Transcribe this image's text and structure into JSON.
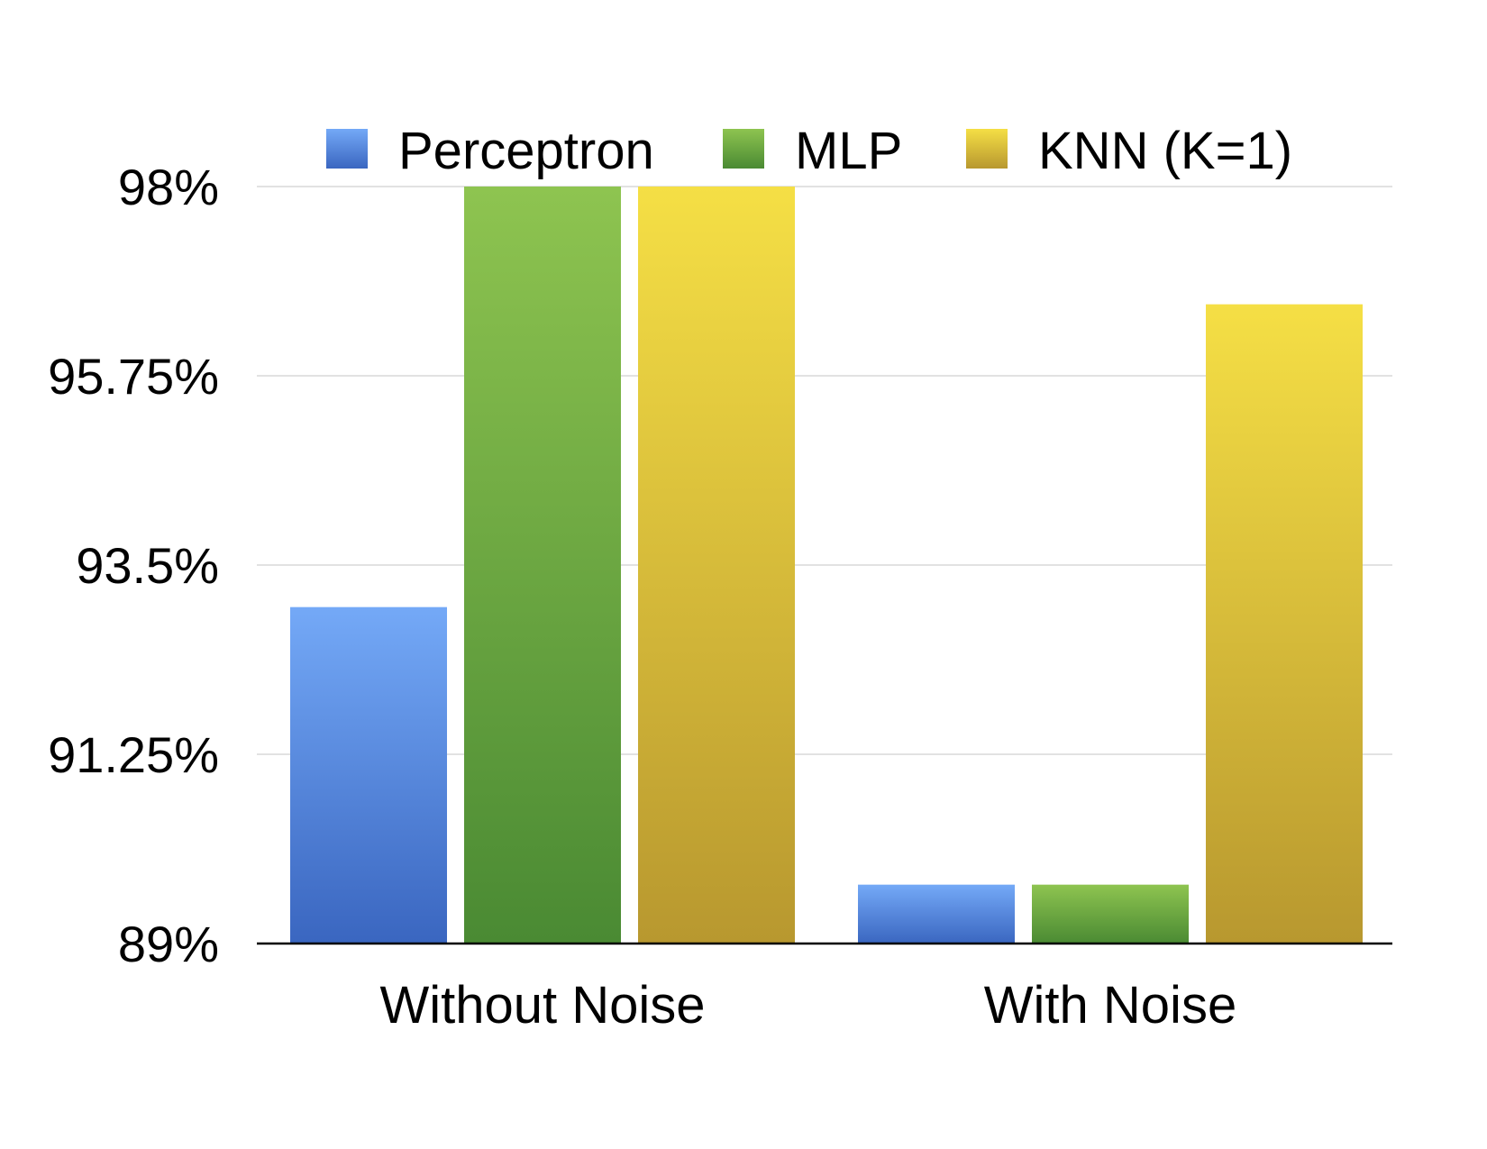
{
  "chart_data": {
    "type": "bar",
    "categories": [
      "Without Noise",
      "With Noise"
    ],
    "series": [
      {
        "name": "Perceptron",
        "values": [
          93.0,
          89.7
        ],
        "color_top": "#74a9f7",
        "color_bottom": "#3a66c0"
      },
      {
        "name": "MLP",
        "values": [
          98.0,
          89.7
        ],
        "color_top": "#8ec450",
        "color_bottom": "#4a8a33"
      },
      {
        "name": "KNN (K=1)",
        "values": [
          98.0,
          96.6
        ],
        "color_top": "#f5df45",
        "color_bottom": "#b8982f"
      }
    ],
    "ylim": [
      89,
      98
    ],
    "yticks": [
      89,
      91.25,
      93.5,
      95.75,
      98
    ],
    "ytick_labels": [
      "89%",
      "91.25%",
      "93.5%",
      "95.75%",
      "98%"
    ],
    "grid": true,
    "legend": "top",
    "title": "",
    "xlabel": "",
    "ylabel": ""
  }
}
